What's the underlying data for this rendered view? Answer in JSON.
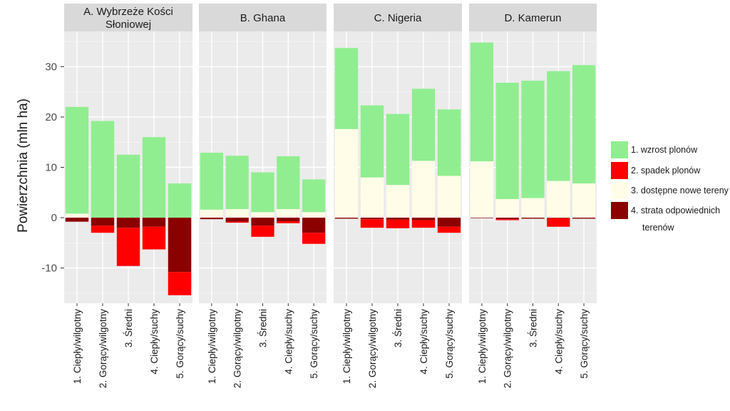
{
  "chart_data": {
    "type": "bar",
    "stacked": true,
    "faceted": true,
    "ylabel": "Powierzchnia (mln ha)",
    "ylim": [
      -17,
      37
    ],
    "y_ticks": [
      -10,
      0,
      10,
      20,
      30
    ],
    "categories": [
      "1. Ciepły/wilgotny",
      "2. Gorący/wilgotny",
      "3. Średni",
      "4. Ciepły/suchy",
      "5. Gorący/suchy"
    ],
    "legend": [
      {
        "label": "1. wzrost plonów",
        "color": "#90ee90"
      },
      {
        "label": "2. spadek plonów",
        "color": "#ff0000"
      },
      {
        "label": "3. dostępne nowe tereny",
        "color": "#fffde7"
      },
      {
        "label": "4. strata odpowiednich terenów",
        "color": "#8b0000"
      }
    ],
    "facets": [
      {
        "title_lines": [
          "A. Wybrzeże Kości",
          "Słoniowej"
        ],
        "series": [
          {
            "name": "1. wzrost plonów",
            "values": [
              21.2,
              19.2,
              12.5,
              16.0,
              6.8
            ]
          },
          {
            "name": "2. spadek plonów",
            "values": [
              0.0,
              -1.4,
              -7.6,
              -4.5,
              -4.6
            ]
          },
          {
            "name": "3. dostępne nowe tereny",
            "values": [
              0.8,
              0.0,
              0.0,
              0.0,
              0.0
            ]
          },
          {
            "name": "4. strata odpowiednich terenów",
            "values": [
              -0.8,
              -1.6,
              -2.0,
              -1.8,
              -10.8
            ]
          }
        ]
      },
      {
        "title_lines": [
          "B. Ghana"
        ],
        "series": [
          {
            "name": "1. wzrost plonów",
            "values": [
              11.3,
              10.6,
              7.9,
              10.5,
              6.5
            ]
          },
          {
            "name": "2. spadek plonów",
            "values": [
              0.0,
              -0.2,
              -2.2,
              -0.4,
              -2.2
            ]
          },
          {
            "name": "3. dostępne nowe tereny",
            "values": [
              1.6,
              1.7,
              1.1,
              1.7,
              1.1
            ]
          },
          {
            "name": "4. strata odpowiednich terenów",
            "values": [
              -0.3,
              -0.8,
              -1.6,
              -0.7,
              -3.0
            ]
          }
        ]
      },
      {
        "title_lines": [
          "C. Nigeria"
        ],
        "series": [
          {
            "name": "1. wzrost plonów",
            "values": [
              16.1,
              14.3,
              14.1,
              14.3,
              13.2
            ]
          },
          {
            "name": "2. spadek plonów",
            "values": [
              0.0,
              -1.7,
              -1.7,
              -1.5,
              -1.2
            ]
          },
          {
            "name": "3. dostępne nowe tereny",
            "values": [
              17.6,
              8.0,
              6.5,
              11.3,
              8.3
            ]
          },
          {
            "name": "4. strata odpowiednich terenów",
            "values": [
              -0.2,
              -0.3,
              -0.4,
              -0.5,
              -1.8
            ]
          }
        ]
      },
      {
        "title_lines": [
          "D. Kamerun"
        ],
        "series": [
          {
            "name": "1. wzrost plonów",
            "values": [
              23.6,
              23.1,
              23.3,
              21.8,
              23.5
            ]
          },
          {
            "name": "2. spadek plonów",
            "values": [
              0.0,
              -0.2,
              0.0,
              -1.7,
              0.0
            ]
          },
          {
            "name": "3. dostępne nowe tereny",
            "values": [
              11.2,
              3.7,
              3.9,
              7.3,
              6.8
            ]
          },
          {
            "name": "4. strata odpowiednich terenów",
            "values": [
              -0.1,
              -0.3,
              -0.2,
              -0.1,
              -0.2
            ]
          }
        ]
      }
    ]
  }
}
